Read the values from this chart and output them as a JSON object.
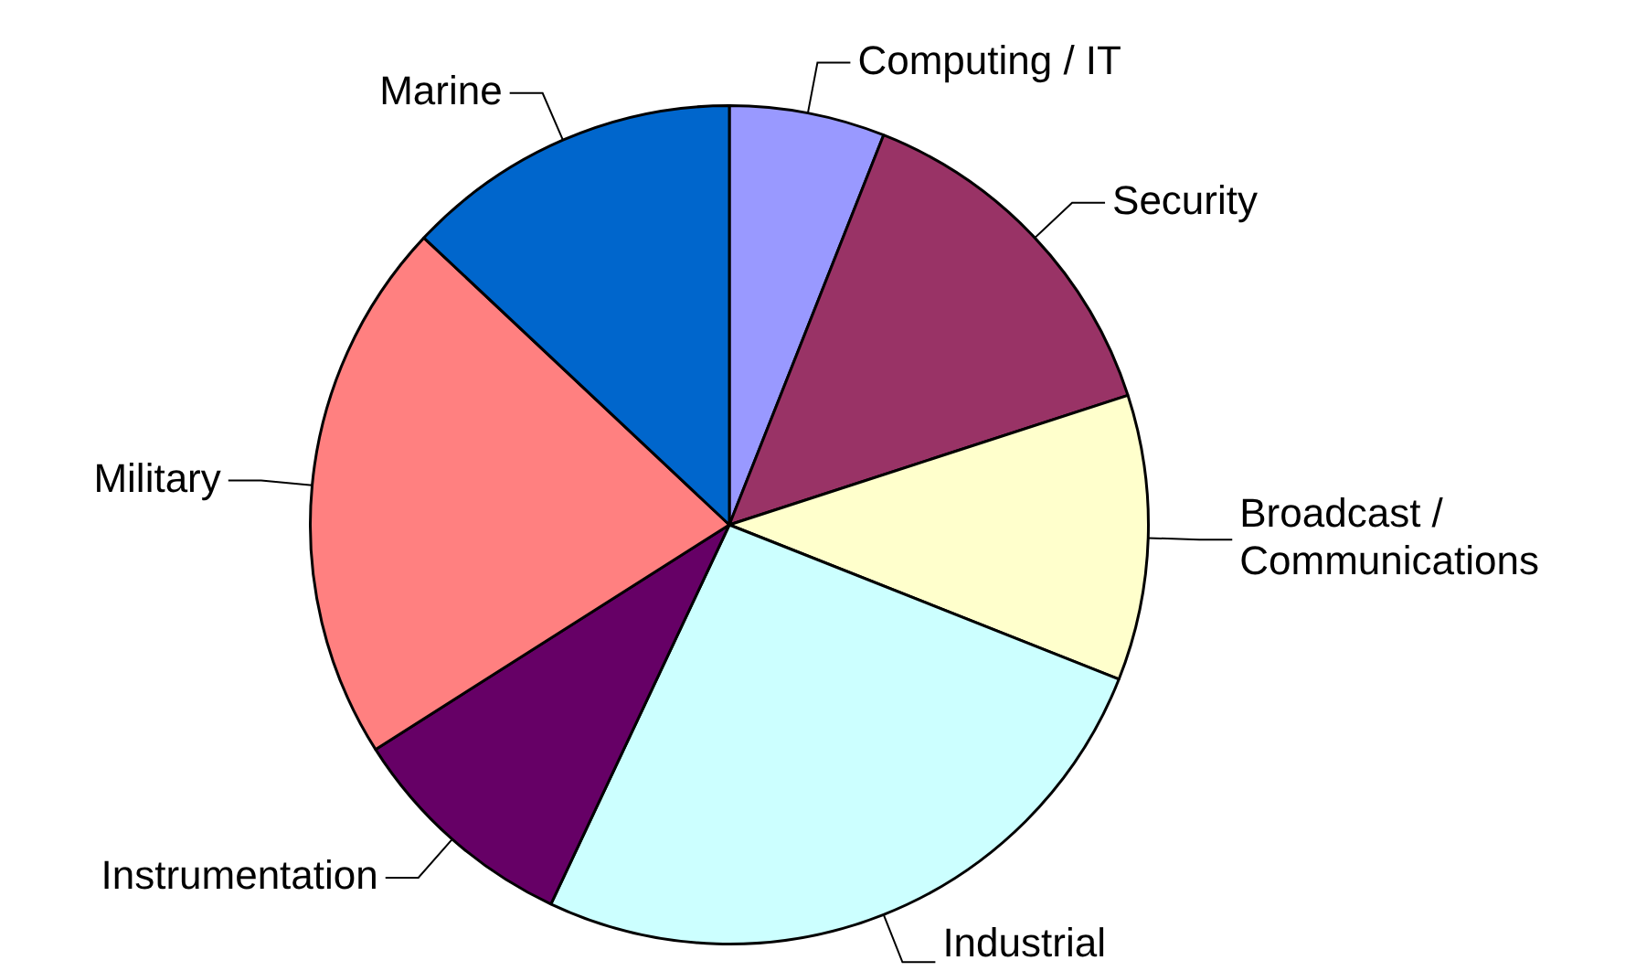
{
  "chart_data": {
    "type": "pie",
    "categories": [
      "Computing / IT",
      "Security",
      "Broadcast / Communications",
      "Industrial",
      "Instrumentation",
      "Military",
      "Marine"
    ],
    "values": [
      6,
      14,
      11,
      26,
      9,
      21,
      13
    ],
    "colors": [
      "#9999ff",
      "#993366",
      "#ffffcc",
      "#ccffff",
      "#660066",
      "#ff8080",
      "#0066cc"
    ],
    "legend": false
  }
}
